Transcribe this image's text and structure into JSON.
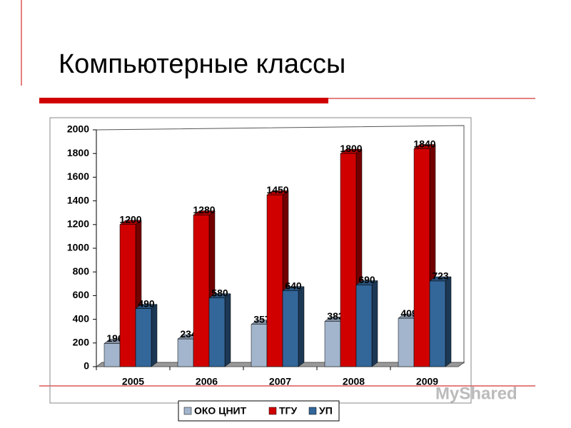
{
  "chart_data": {
    "type": "bar3d",
    "title": "Компьютерные классы",
    "categories": [
      "2005",
      "2006",
      "2007",
      "2008",
      "2009"
    ],
    "series": [
      {
        "name": "ОКО ЦНИТ",
        "color": "#a3b5cc",
        "values": [
          196,
          234,
          357,
          383,
          409
        ]
      },
      {
        "name": "ТГУ",
        "color": "#d00000",
        "values": [
          1200,
          1280,
          1450,
          1800,
          1840
        ]
      },
      {
        "name": "УП",
        "color": "#336699",
        "values": [
          490,
          580,
          640,
          690,
          723
        ]
      }
    ],
    "ylim": [
      0,
      2000
    ],
    "yticks": [
      0,
      200,
      400,
      600,
      800,
      1000,
      1200,
      1400,
      1600,
      1800,
      2000
    ],
    "legend": "bottom",
    "watermark": "MyShared"
  }
}
